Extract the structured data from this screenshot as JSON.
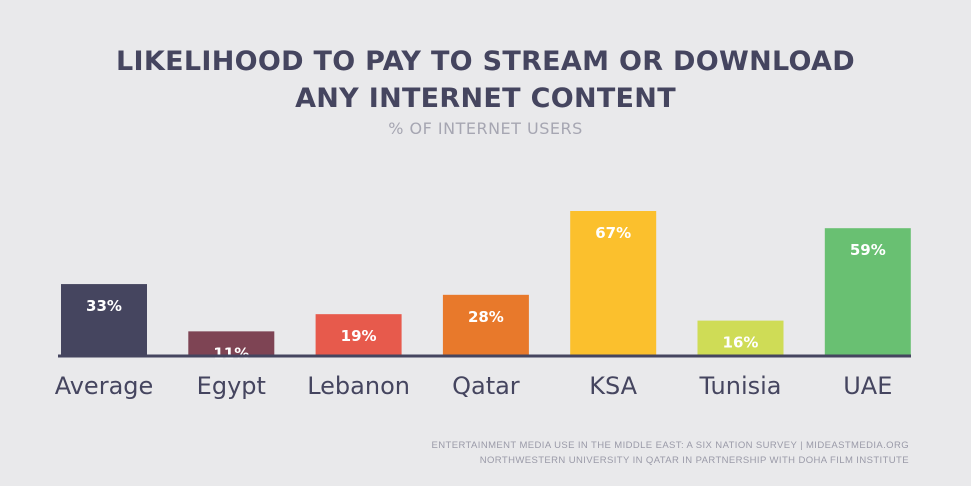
{
  "header": {
    "title_line1": "LIKELIHOOD TO PAY TO STREAM OR DOWNLOAD",
    "title_line2": "ANY INTERNET CONTENT",
    "subtitle": "% OF INTERNET USERS"
  },
  "footer": {
    "line1": "ENTERTAINMENT MEDIA USE IN THE MIDDLE EAST: A SIX NATION SURVEY | MIDEASTMEDIA.ORG",
    "line2": "NORTHWESTERN UNIVERSITY IN QATAR IN PARTNERSHIP WITH DOHA FILM INSTITUTE"
  },
  "chart_data": {
    "type": "bar",
    "title": "LIKELIHOOD TO PAY TO STREAM OR DOWNLOAD ANY INTERNET CONTENT",
    "subtitle": "% OF INTERNET USERS",
    "categories": [
      "Average",
      "Egypt",
      "Lebanon",
      "Qatar",
      "KSA",
      "Tunisia",
      "UAE"
    ],
    "values": [
      33,
      11,
      19,
      28,
      67,
      16,
      59
    ],
    "data_labels": [
      "33%",
      "11%",
      "19%",
      "28%",
      "67%",
      "16%",
      "59%"
    ],
    "colors": [
      "#45455f",
      "#7e4454",
      "#e75a4c",
      "#e8792b",
      "#fbc02d",
      "#cfdc56",
      "#69c072"
    ],
    "ylim": [
      0,
      67
    ],
    "grid": false,
    "axis_color": "#45455f"
  }
}
